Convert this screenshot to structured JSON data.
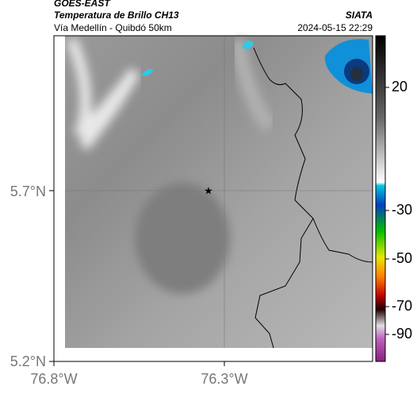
{
  "header": {
    "title": "GOES-EAST",
    "subtitle": "Temperatura de Brillo CH13",
    "location": "Vía Medellín - Quibdó 50km",
    "source": "SIATA",
    "datetime": "2024-05-15 22:29"
  },
  "map": {
    "lat_labels": [
      "5.7°N",
      "5.2°N"
    ],
    "lon_labels": [
      "76.8°W",
      "76.3°W"
    ]
  },
  "colorbar": {
    "labels": [
      "20",
      "-30",
      "-50",
      "-70",
      "-90"
    ]
  }
}
